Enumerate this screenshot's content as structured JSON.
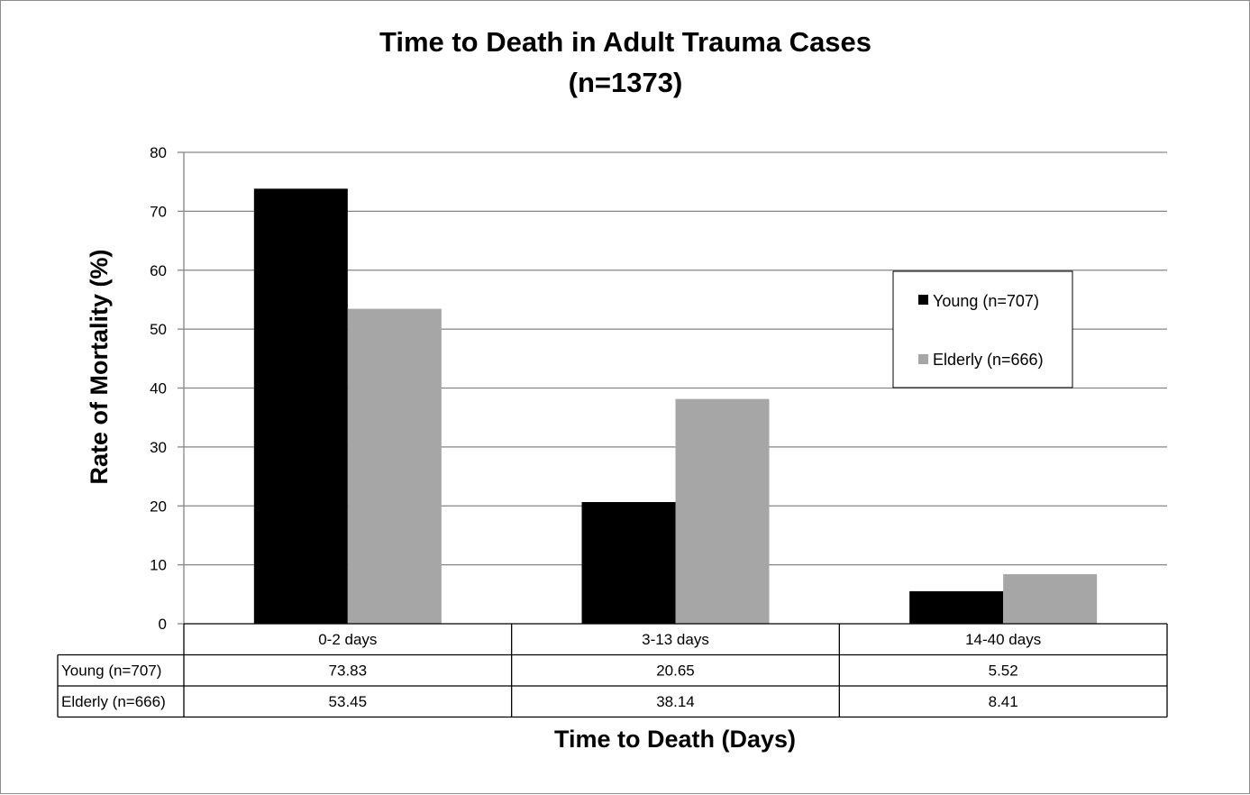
{
  "chart_data": {
    "type": "bar",
    "title_line1": "Time to Death in Adult Trauma Cases",
    "title_line2": "(n=1373)",
    "xlabel": "Time to Death (Days)",
    "ylabel": "Rate of Mortality (%)",
    "ylim": [
      0,
      80
    ],
    "yticks": [
      0,
      10,
      20,
      30,
      40,
      50,
      60,
      70,
      80
    ],
    "grid": true,
    "legend_position": "right",
    "categories": [
      "0-2 days",
      "3-13 days",
      "14-40 days"
    ],
    "series": [
      {
        "name": "Young (n=707)",
        "color": "#000000",
        "values": [
          73.83,
          20.65,
          5.52
        ],
        "labels": [
          "73.83",
          "20.65",
          "5.52"
        ]
      },
      {
        "name": "Elderly (n=666)",
        "color": "#a6a6a6",
        "values": [
          53.45,
          38.14,
          8.41
        ],
        "labels": [
          "53.45",
          "38.14",
          "8.41"
        ]
      }
    ],
    "data_table": true
  }
}
